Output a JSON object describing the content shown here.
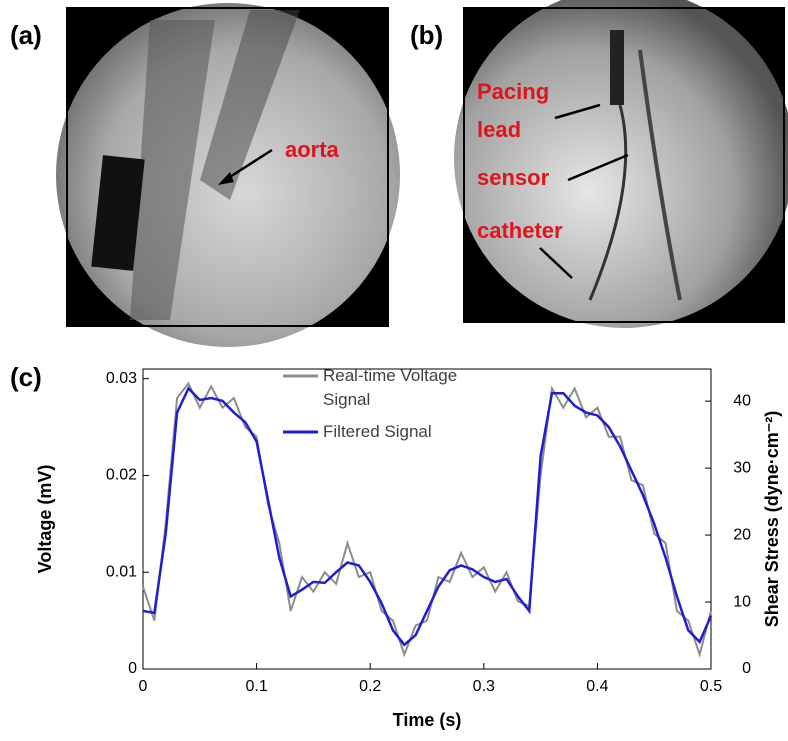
{
  "panels": [
    {
      "label": "(a)",
      "annotations": [
        "aorta"
      ]
    },
    {
      "label": "(b)",
      "annotations": [
        "Pacing lead",
        "sensor",
        "catheter"
      ]
    }
  ],
  "chart_data": {
    "type": "line",
    "label": "(c)",
    "x_label": "Time (s)",
    "y_label": "Voltage (mV)",
    "y2_label": "Shear Stress (dyne·cm⁻²)",
    "x": [
      0,
      0.01,
      0.02,
      0.03,
      0.04,
      0.05,
      0.06,
      0.07,
      0.08,
      0.09,
      0.1,
      0.11,
      0.12,
      0.13,
      0.14,
      0.15,
      0.16,
      0.17,
      0.18,
      0.19,
      0.2,
      0.21,
      0.22,
      0.23,
      0.24,
      0.25,
      0.26,
      0.27,
      0.28,
      0.29,
      0.3,
      0.31,
      0.32,
      0.33,
      0.34,
      0.35,
      0.36,
      0.37,
      0.38,
      0.39,
      0.4,
      0.41,
      0.42,
      0.43,
      0.44,
      0.45,
      0.46,
      0.47,
      0.48,
      0.49,
      0.5
    ],
    "series": [
      {
        "name": "Real-time Voltage Signal",
        "color": "#8c8c8c",
        "values": [
          0.0085,
          0.005,
          0.015,
          0.028,
          0.0295,
          0.027,
          0.0292,
          0.027,
          0.028,
          0.025,
          0.024,
          0.017,
          0.013,
          0.006,
          0.0095,
          0.008,
          0.01,
          0.0088,
          0.013,
          0.0095,
          0.01,
          0.006,
          0.005,
          0.0015,
          0.0045,
          0.005,
          0.0095,
          0.009,
          0.012,
          0.0095,
          0.0105,
          0.008,
          0.01,
          0.007,
          0.0065,
          0.02,
          0.029,
          0.027,
          0.029,
          0.026,
          0.027,
          0.024,
          0.024,
          0.0195,
          0.019,
          0.014,
          0.013,
          0.006,
          0.005,
          0.0015,
          0.006
        ]
      },
      {
        "name": "Filtered Signal",
        "color": "#1f1fd0",
        "values": [
          0.006,
          0.0058,
          0.014,
          0.0265,
          0.029,
          0.0278,
          0.028,
          0.0277,
          0.0265,
          0.0255,
          0.0235,
          0.0175,
          0.0115,
          0.0075,
          0.0082,
          0.009,
          0.0089,
          0.01,
          0.011,
          0.0107,
          0.009,
          0.0068,
          0.004,
          0.0025,
          0.0035,
          0.006,
          0.0085,
          0.0102,
          0.0107,
          0.0103,
          0.0095,
          0.009,
          0.0093,
          0.0075,
          0.006,
          0.022,
          0.0285,
          0.0285,
          0.0272,
          0.0265,
          0.0262,
          0.025,
          0.023,
          0.0205,
          0.018,
          0.015,
          0.0115,
          0.0075,
          0.004,
          0.0028,
          0.0055
        ]
      }
    ],
    "xlim": [
      0,
      0.5
    ],
    "xticks": [
      0,
      0.1,
      0.2,
      0.3,
      0.4,
      0.5
    ],
    "ylim": [
      0,
      0.031
    ],
    "yticks": [
      0,
      0.01,
      0.02,
      0.03
    ],
    "y2lim": [
      0,
      44.8
    ],
    "y2ticks": [
      0,
      10,
      20,
      30,
      40
    ]
  }
}
